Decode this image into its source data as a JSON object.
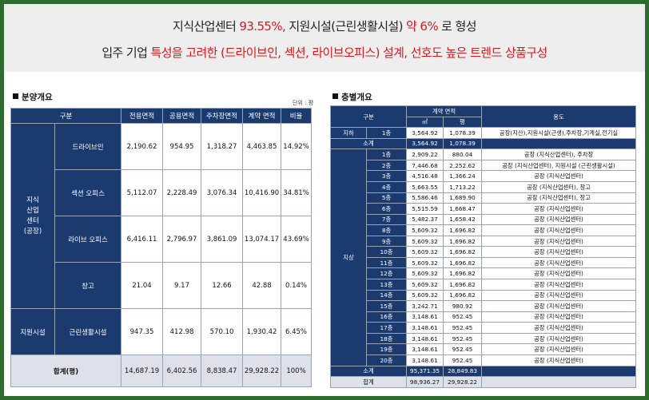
{
  "banner": {
    "line1_a": "지식산업센터 ",
    "line1_b": "93.55%,",
    "line1_c": " 지원시설(근린생활시설) ",
    "line1_d": "약 6%",
    "line1_e": " 로 형성",
    "line2_a": "입주 기업 ",
    "line2_b": "특성을 고려한 (드라이브인, 섹션, 라이브오피스) 설계, 선호도 높은 트렌드 상품구성"
  },
  "sale": {
    "title": "분양개요",
    "unit": "단위 : 평",
    "headers": [
      "구분",
      "전용면적",
      "공용면적",
      "주차장면적",
      "계약 면적",
      "비율"
    ],
    "group1": "지식\n산업\n센터\n(공장)",
    "group2": "지원시설",
    "rows": [
      [
        "드라이브인",
        "2,190.62",
        "954.95",
        "1,318.27",
        "4,463.85",
        "14.92%"
      ],
      [
        "섹션 오피스",
        "5,112.07",
        "2,228.49",
        "3,076.34",
        "10,416.90",
        "34.81%"
      ],
      [
        "라이브 오피스",
        "6,416.11",
        "2,796.97",
        "3,861.09",
        "13,074.17",
        "43.69%"
      ],
      [
        "창고",
        "21.04",
        "9.17",
        "12.66",
        "42.88",
        "0.14%"
      ],
      [
        "근린생활시설",
        "947.35",
        "412.98",
        "570.10",
        "1,930.42",
        "6.45%"
      ]
    ],
    "total": [
      "합계(평)",
      "14,687.19",
      "6,402.56",
      "8,838.47",
      "29,928.22",
      "100%"
    ]
  },
  "floors": {
    "title": "층별개요",
    "h_gubun": "구분",
    "h_area": "계약 면적",
    "h_use": "용도",
    "h_m2": "㎡",
    "h_py": "평",
    "basement_label": "지하",
    "above_label": "지상",
    "basement": [
      [
        "1층",
        "3,564.92",
        "1,078.39",
        "공장(지산),지원시설(근생),주차장,기계실,전기실"
      ]
    ],
    "basement_sum": [
      "소계",
      "3,564.92",
      "1,078.39"
    ],
    "above": [
      [
        "1층",
        "2,909.22",
        "880.04",
        "공장 (지식산업센터), 주차장"
      ],
      [
        "2층",
        "7,446.68",
        "2,252.62",
        "공장 (지식산업센터), 지원시설 (근린생활시설)"
      ],
      [
        "3층",
        "4,516.48",
        "1,366.24",
        "공장 (지식산업센터)"
      ],
      [
        "4층",
        "5,663.55",
        "1,713.22",
        "공장 (지식산업센터), 창고"
      ],
      [
        "5층",
        "5,586.46",
        "1,689.90",
        "공장 (지식산업센터), 창고"
      ],
      [
        "6층",
        "5,515.59",
        "1,668.47",
        "공장 (지식산업센터)"
      ],
      [
        "7층",
        "5,482.37",
        "1,658.42",
        "공장 (지식산업센터)"
      ],
      [
        "8층",
        "5,609.32",
        "1,696.82",
        "공장 (지식산업센터)"
      ],
      [
        "9층",
        "5,609.32",
        "1,696.82",
        "공장 (지식산업센터)"
      ],
      [
        "10층",
        "5,609.32",
        "1,696.82",
        "공장 (지식산업센터)"
      ],
      [
        "11층",
        "5,609.32",
        "1,696.82",
        "공장 (지식산업센터)"
      ],
      [
        "12층",
        "5,609.32",
        "1,696.82",
        "공장 (지식산업센터)"
      ],
      [
        "13층",
        "5,609.32",
        "1,696.82",
        "공장 (지식산업센터)"
      ],
      [
        "14층",
        "5,609.32",
        "1,696.82",
        "공장 (지식산업센터)"
      ],
      [
        "15층",
        "3,242.71",
        "980.92",
        "공장 (지식산업센터)"
      ],
      [
        "16층",
        "3,148.61",
        "952.45",
        "공장 (지식산업센터)"
      ],
      [
        "17층",
        "3,148.61",
        "952.45",
        "공장 (지식산업센터)"
      ],
      [
        "18층",
        "3,148.61",
        "952.45",
        "공장 (지식산업센터)"
      ],
      [
        "19층",
        "3,148.61",
        "952.45",
        "공장 (지식산업센터)"
      ],
      [
        "20층",
        "3,148.61",
        "952.45",
        "공장 (지식산업센터)"
      ]
    ],
    "above_sum": [
      "소계",
      "95,371.35",
      "28,849.83"
    ],
    "grand": [
      "합계",
      "98,936.27",
      "29,928.22"
    ]
  },
  "colors": {
    "accent_red": "#e0161b",
    "header_navy": "#1b3b6f",
    "frame_green": "#2e6b2f"
  }
}
